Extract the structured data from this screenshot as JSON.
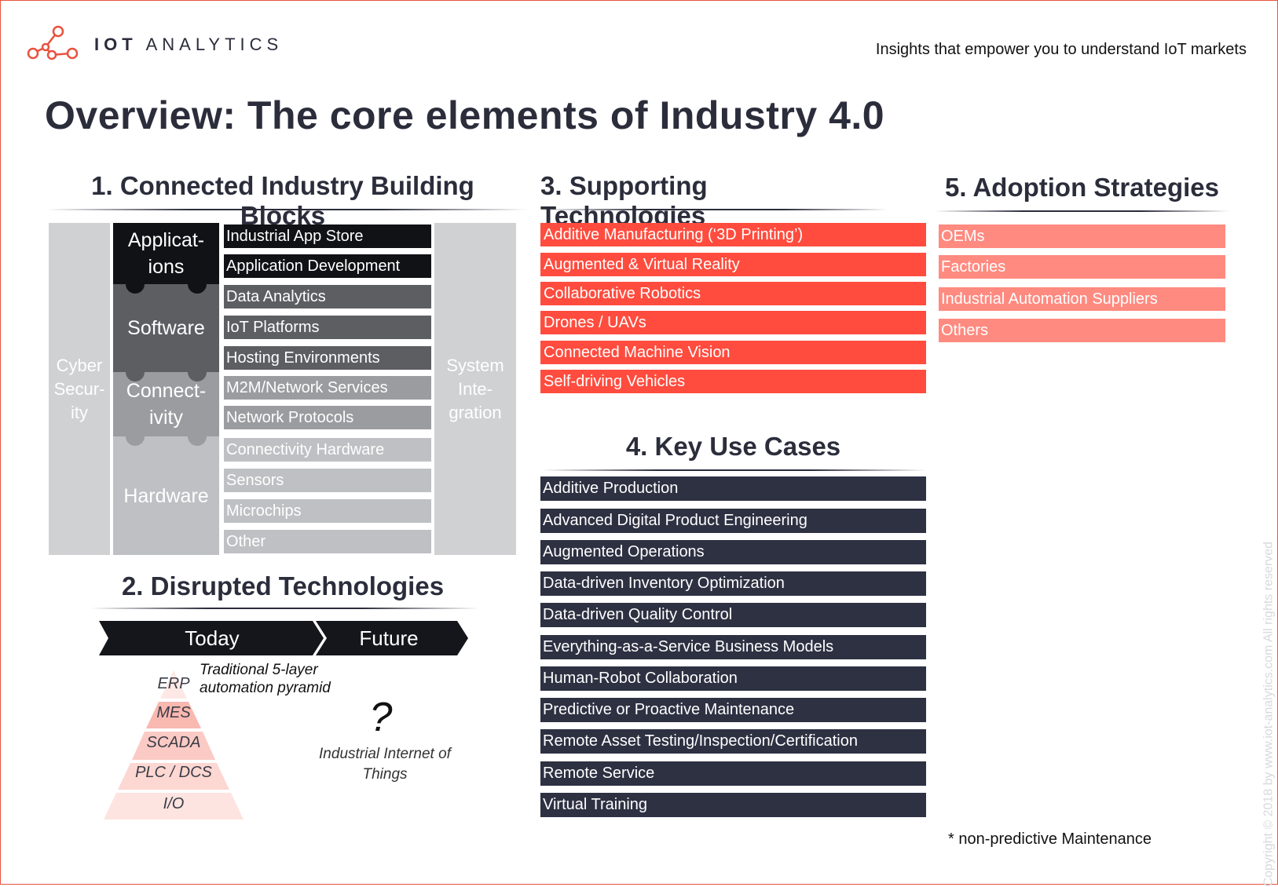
{
  "header": {
    "brand_strong": "IOT",
    "brand_light": "ANALYTICS",
    "tagline": "Insights that empower you to understand IoT markets",
    "title": "Overview: The core elements of Industry 4.0"
  },
  "sections": {
    "s1": "1. Connected Industry Building Blocks",
    "s2": "2. Disrupted Technologies",
    "s3": "3. Supporting Technologies",
    "s4": "4. Key Use Cases",
    "s5": "5. Adoption Strategies"
  },
  "building_blocks": {
    "left_pillar": "Cyber\nSecur-\nity",
    "right_pillar": "System\nInte-\ngration",
    "layers": [
      "Applicat-\nions",
      "Software",
      "Connect-\nivity",
      "Hardware"
    ],
    "items": [
      "Industrial App Store",
      "Application Development",
      "Data Analytics",
      "IoT Platforms",
      "Hosting Environments",
      "M2M/Network Services",
      "Network Protocols",
      "Connectivity Hardware",
      "Sensors",
      "Microchips",
      "Other"
    ]
  },
  "disrupted": {
    "today": "Today",
    "future": "Future",
    "pyramid_caption": "Traditional 5-layer automation pyramid",
    "pyramid_levels": [
      "ERP",
      "MES",
      "SCADA",
      "PLC / DCS",
      "I/O"
    ],
    "question": "?",
    "future_label": "Industrial Internet of Things"
  },
  "supporting": [
    "Additive Manufacturing (‘3D Printing’)",
    "Augmented & Virtual Reality",
    "Collaborative Robotics",
    "Drones / UAVs",
    "Connected Machine Vision",
    "Self-driving Vehicles"
  ],
  "use_cases": [
    "Additive Production",
    "Advanced Digital Product Engineering",
    "Augmented Operations",
    "Data-driven Inventory Optimization",
    "Data-driven Quality Control",
    "Everything-as-a-Service Business Models",
    "Human-Robot Collaboration",
    "Predictive or Proactive Maintenance",
    "Remote Asset Testing/Inspection/Certification",
    "Remote Service",
    "Virtual Training"
  ],
  "adoption": [
    "OEMs",
    "Factories",
    "Industrial Automation Suppliers",
    "Others"
  ],
  "footnote": "* non-predictive Maintenance",
  "copyright": "Copyright © 2018 by www.iot-analytics.com All rights reserved",
  "colors": {
    "navy": "#2d3142",
    "red": "#ff4c3e",
    "pink": "#ff8a80",
    "accent_border": "#e8523f"
  }
}
